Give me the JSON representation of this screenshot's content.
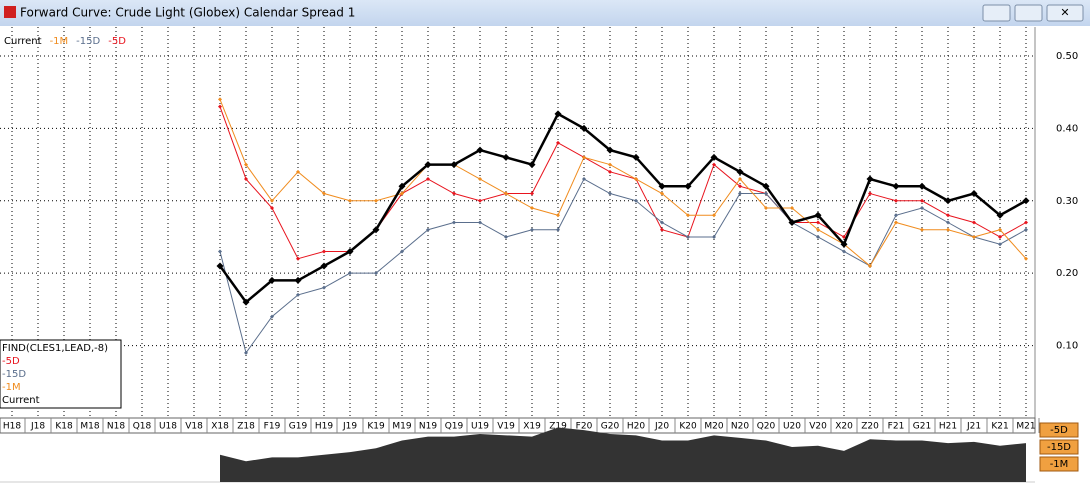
{
  "window": {
    "title": "Forward Curve: Crude Light (Globex) Calendar Spread 1"
  },
  "chart_data": {
    "type": "line",
    "categories": [
      "H18",
      "J18",
      "K18",
      "M18",
      "N18",
      "Q18",
      "U18",
      "V18",
      "X18",
      "Z18",
      "F19",
      "G19",
      "H19",
      "J19",
      "K19",
      "M19",
      "N19",
      "Q19",
      "U19",
      "V19",
      "X19",
      "Z19",
      "F20",
      "G20",
      "H20",
      "J20",
      "K20",
      "M20",
      "N20",
      "Q20",
      "U20",
      "V20",
      "X20",
      "Z20",
      "F21",
      "G21",
      "H21",
      "J21",
      "K21",
      "M21"
    ],
    "series": [
      {
        "name": "Current",
        "color": "#000000",
        "width": 2.5,
        "values": [
          null,
          null,
          null,
          null,
          null,
          null,
          null,
          null,
          0.21,
          0.16,
          0.19,
          0.19,
          0.21,
          0.23,
          0.26,
          0.32,
          0.35,
          0.35,
          0.37,
          0.36,
          0.35,
          0.42,
          0.4,
          0.37,
          0.36,
          0.32,
          0.32,
          0.36,
          0.34,
          0.32,
          0.27,
          0.28,
          0.24,
          0.33,
          0.32,
          0.32,
          0.3,
          0.31,
          0.28,
          0.3
        ]
      },
      {
        "name": "-1M",
        "color": "#f08c1e",
        "width": 1,
        "values": [
          null,
          null,
          null,
          null,
          null,
          null,
          null,
          null,
          0.44,
          0.35,
          0.3,
          0.34,
          0.31,
          0.3,
          0.3,
          0.31,
          0.35,
          0.35,
          0.33,
          0.31,
          0.29,
          0.28,
          0.36,
          0.35,
          0.33,
          0.31,
          0.28,
          0.28,
          0.33,
          0.29,
          0.29,
          0.26,
          0.24,
          0.21,
          0.27,
          0.26,
          0.26,
          0.25,
          0.26,
          0.22
        ]
      },
      {
        "name": "-15D",
        "color": "#5a6e8c",
        "width": 1,
        "values": [
          null,
          null,
          null,
          null,
          null,
          null,
          null,
          null,
          0.23,
          0.09,
          0.14,
          0.17,
          0.18,
          0.2,
          0.2,
          0.23,
          0.26,
          0.27,
          0.27,
          0.25,
          0.26,
          0.26,
          0.33,
          0.31,
          0.3,
          0.27,
          0.25,
          0.25,
          0.31,
          0.31,
          0.27,
          0.25,
          0.23,
          0.21,
          0.28,
          0.29,
          0.27,
          0.25,
          0.24,
          0.26
        ]
      },
      {
        "name": "-5D",
        "color": "#e8141e",
        "width": 1,
        "values": [
          null,
          null,
          null,
          null,
          null,
          null,
          null,
          null,
          0.43,
          0.33,
          0.29,
          0.22,
          0.23,
          0.23,
          0.26,
          0.31,
          0.33,
          0.31,
          0.3,
          0.31,
          0.31,
          0.38,
          0.36,
          0.34,
          0.33,
          0.26,
          0.25,
          0.35,
          0.32,
          0.31,
          0.27,
          0.27,
          0.25,
          0.31,
          0.3,
          0.3,
          0.28,
          0.27,
          0.25,
          0.27
        ]
      }
    ],
    "ylim": [
      0,
      0.54
    ],
    "yticks": [
      {
        "value": 0.1,
        "label": "0.10"
      },
      {
        "value": 0.2,
        "label": "0.20"
      },
      {
        "value": 0.3,
        "label": "0.30"
      },
      {
        "value": 0.4,
        "label": "0.40"
      },
      {
        "value": 0.5,
        "label": "0.50"
      }
    ],
    "grid": true
  },
  "study_box": {
    "lines": [
      "FIND(CLES1,LEAD,-8)",
      "-5D",
      "-15D",
      "-1M",
      "Current"
    ]
  },
  "side_buttons": [
    "-5D",
    "-15D",
    "-1M"
  ]
}
